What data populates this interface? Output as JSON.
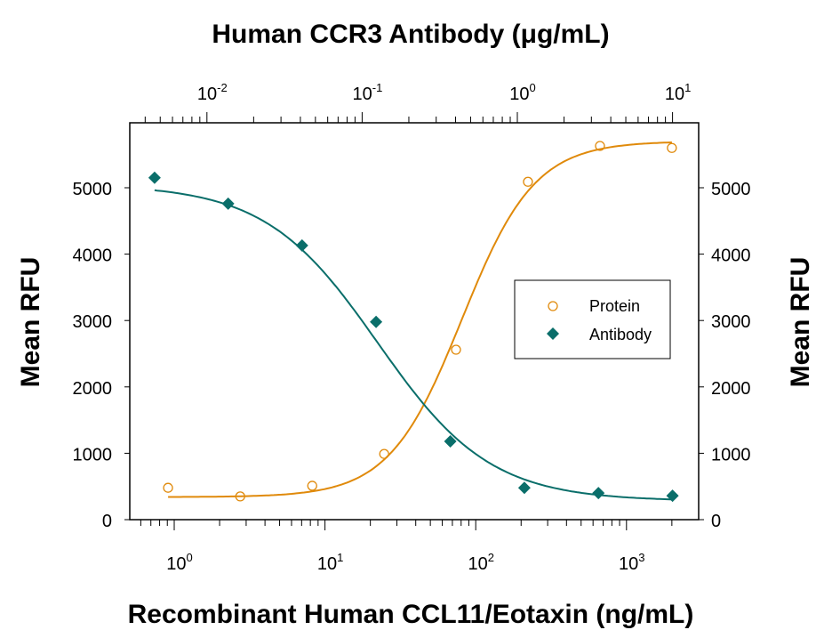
{
  "chart_data": {
    "type": "scatter",
    "title": "Human CCR3 Antibody (μg/mL)",
    "xlabel": "Recombinant Human CCL11/Eotaxin  (ng/mL)",
    "ylabel": "Mean RFU",
    "ylabel_right": "Mean RFU",
    "x_scale": "log",
    "x_top_scale": "log",
    "xlim": [
      0.6,
      3000
    ],
    "x_top_lim": [
      0.0035,
      14
    ],
    "ylim": [
      0,
      5900
    ],
    "x_ticks": [
      {
        "base": "10",
        "exp": "0",
        "value": 1
      },
      {
        "base": "10",
        "exp": "1",
        "value": 10
      },
      {
        "base": "10",
        "exp": "2",
        "value": 100
      },
      {
        "base": "10",
        "exp": "3",
        "value": 1000
      }
    ],
    "x_top_ticks": [
      {
        "base": "10",
        "exp": "-2",
        "value": 0.01
      },
      {
        "base": "10",
        "exp": "-1",
        "value": 0.1
      },
      {
        "base": "10",
        "exp": "0",
        "value": 1
      },
      {
        "base": "10",
        "exp": "1",
        "value": 10
      }
    ],
    "y_ticks": [
      "0",
      "1000",
      "2000",
      "3000",
      "4000",
      "5000"
    ],
    "grid": false,
    "legend_placement": "center-right",
    "series": [
      {
        "name": "Protein",
        "axis": "bottom",
        "marker": "open-circle",
        "color": "#E08A0B",
        "x": [
          0.91,
          2.74,
          8.23,
          24.7,
          74,
          222,
          667,
          2000
        ],
        "y": [
          480,
          350,
          510,
          990,
          2560,
          5090,
          5630,
          5600
        ],
        "fit": {
          "bottom": 340,
          "top": 5700,
          "ec50": 81,
          "hill": 1.8
        }
      },
      {
        "name": "Antibody",
        "axis": "top",
        "marker": "filled-diamond",
        "color": "#0A6E6A",
        "x": [
          0.0046,
          0.0137,
          0.041,
          0.123,
          0.37,
          1.11,
          3.33,
          10
        ],
        "y": [
          5150,
          4760,
          4130,
          2980,
          1180,
          480,
          400,
          360
        ],
        "fit": {
          "bottom": 280,
          "top": 5050,
          "ec50": 0.126,
          "hill": 1.2
        }
      }
    ]
  }
}
